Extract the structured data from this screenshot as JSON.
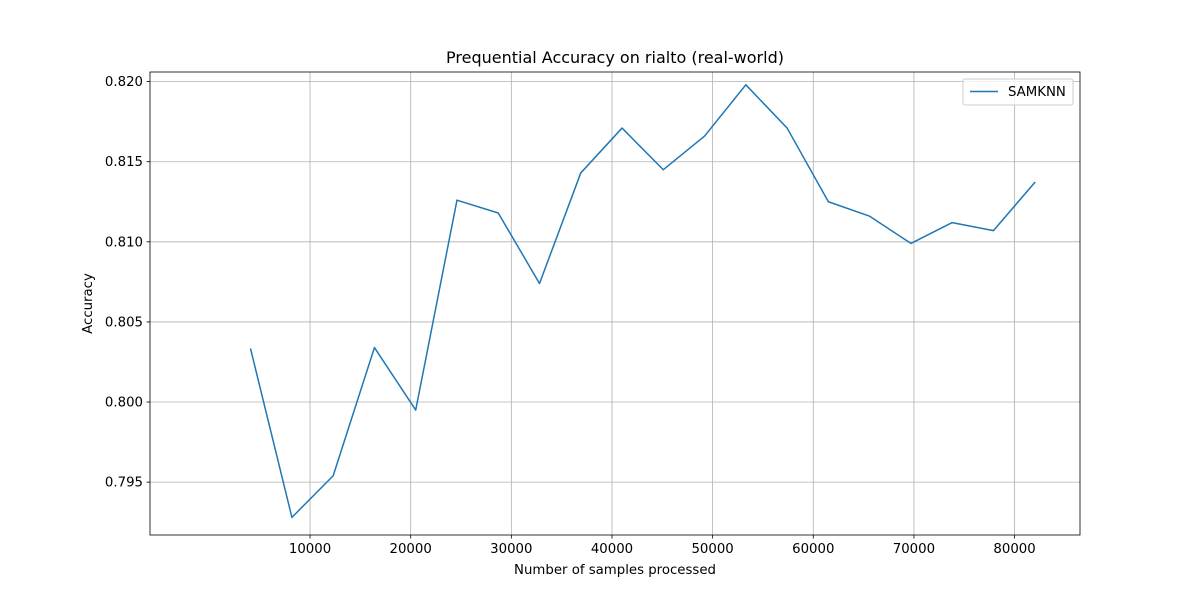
{
  "chart_data": {
    "type": "line",
    "title": "Prequential Accuracy on rialto (real-world)",
    "xlabel": "Number of samples processed",
    "ylabel": "Accuracy",
    "xlim": [
      -5900,
      86500
    ],
    "ylim": [
      0.7917,
      0.8206
    ],
    "xticks": [
      10000,
      20000,
      30000,
      40000,
      50000,
      60000,
      70000,
      80000
    ],
    "yticks": [
      0.795,
      0.8,
      0.805,
      0.81,
      0.815,
      0.82
    ],
    "xtick_labels": [
      "10000",
      "20000",
      "30000",
      "40000",
      "50000",
      "60000",
      "70000",
      "80000"
    ],
    "ytick_labels": [
      "0.795",
      "0.800",
      "0.805",
      "0.810",
      "0.815",
      "0.820"
    ],
    "grid": true,
    "legend_position": "top-right",
    "series": [
      {
        "name": "SAMKNN",
        "color": "#1f77b4",
        "x": [
          4100,
          8200,
          12300,
          16400,
          20500,
          24600,
          28700,
          32800,
          36900,
          41000,
          45100,
          49200,
          53300,
          57400,
          61500,
          65600,
          69700,
          73800,
          77900,
          82000
        ],
        "y": [
          0.8033,
          0.7928,
          0.7954,
          0.8034,
          0.7995,
          0.8126,
          0.8118,
          0.8074,
          0.8143,
          0.8171,
          0.8145,
          0.8166,
          0.8198,
          0.8171,
          0.8125,
          0.8116,
          0.8099,
          0.8112,
          0.8107,
          0.8137
        ]
      }
    ]
  }
}
